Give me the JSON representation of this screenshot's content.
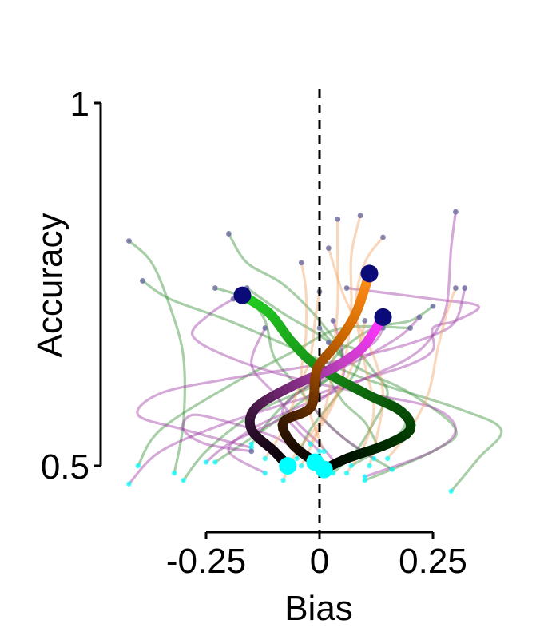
{
  "chart_data": {
    "type": "line",
    "xlabel": "Bias",
    "ylabel": "Accuracy",
    "xlim": [
      -0.25,
      0.25
    ],
    "ylim": [
      0.5,
      1
    ],
    "x_ticks": [
      {
        "value": -0.25,
        "label": "-0.25"
      },
      {
        "value": 0,
        "label": "0"
      },
      {
        "value": 0.25,
        "label": "0.25"
      }
    ],
    "y_ticks": [
      {
        "value": 1,
        "label": "1"
      },
      {
        "value": 0.5,
        "label": "0.5"
      }
    ],
    "reference_line": {
      "x": 0,
      "style": "dashed"
    },
    "grid": false,
    "legend": "none",
    "start_marker_color": "#00ffff",
    "end_marker_color": "#0a0a78",
    "series": [
      {
        "kind": "mean",
        "colors": [
          "#000000",
          "#003300",
          "#0d660d",
          "#1a9e1a",
          "#22cc22"
        ],
        "stroke_width": 12,
        "points": [
          [
            0.01,
            0.495
          ],
          [
            0.06,
            0.51
          ],
          [
            0.15,
            0.53
          ],
          [
            0.2,
            0.55
          ],
          [
            0.18,
            0.575
          ],
          [
            0.1,
            0.6
          ],
          [
            0.0,
            0.635
          ],
          [
            -0.06,
            0.67
          ],
          [
            -0.11,
            0.71
          ],
          [
            -0.17,
            0.735
          ]
        ]
      },
      {
        "kind": "mean",
        "colors": [
          "#000000",
          "#301030",
          "#7a2a7a",
          "#c040c0",
          "#ff33ff"
        ],
        "stroke_width": 12,
        "points": [
          [
            -0.07,
            0.5
          ],
          [
            -0.1,
            0.52
          ],
          [
            -0.15,
            0.55
          ],
          [
            -0.14,
            0.58
          ],
          [
            -0.06,
            0.61
          ],
          [
            0.03,
            0.635
          ],
          [
            0.09,
            0.66
          ],
          [
            0.12,
            0.685
          ],
          [
            0.14,
            0.705
          ]
        ]
      },
      {
        "kind": "mean",
        "colors": [
          "#000000",
          "#3a1a00",
          "#8a4000",
          "#d06a00",
          "#ff8c1a"
        ],
        "stroke_width": 12,
        "points": [
          [
            -0.01,
            0.505
          ],
          [
            -0.06,
            0.53
          ],
          [
            -0.08,
            0.56
          ],
          [
            -0.02,
            0.58
          ],
          [
            -0.01,
            0.62
          ],
          [
            0.0,
            0.64
          ],
          [
            0.04,
            0.67
          ],
          [
            0.08,
            0.71
          ],
          [
            0.11,
            0.765
          ]
        ]
      },
      {
        "kind": "trial",
        "color": "#2e8b2e",
        "points": [
          [
            -0.4,
            0.5
          ],
          [
            -0.35,
            0.55
          ],
          [
            -0.2,
            0.61
          ],
          [
            -0.05,
            0.66
          ],
          [
            0.05,
            0.69
          ],
          [
            0.2,
            0.69
          ]
        ]
      },
      {
        "kind": "trial",
        "color": "#2e8b2e",
        "points": [
          [
            -0.32,
            0.49
          ],
          [
            -0.3,
            0.56
          ],
          [
            -0.3,
            0.65
          ],
          [
            -0.33,
            0.72
          ],
          [
            -0.37,
            0.78
          ],
          [
            -0.42,
            0.81
          ]
        ]
      },
      {
        "kind": "trial",
        "color": "#2e8b2e",
        "points": [
          [
            -0.23,
            0.505
          ],
          [
            -0.1,
            0.56
          ],
          [
            0.0,
            0.61
          ],
          [
            0.05,
            0.65
          ],
          [
            0.0,
            0.7
          ],
          [
            -0.08,
            0.75
          ],
          [
            -0.16,
            0.78
          ],
          [
            -0.2,
            0.82
          ]
        ]
      },
      {
        "kind": "trial",
        "color": "#2e8b2e",
        "points": [
          [
            0.16,
            0.495
          ],
          [
            0.07,
            0.53
          ],
          [
            0.0,
            0.57
          ],
          [
            -0.05,
            0.61
          ],
          [
            -0.1,
            0.65
          ],
          [
            -0.12,
            0.7
          ],
          [
            -0.16,
            0.73
          ],
          [
            -0.23,
            0.745
          ]
        ]
      },
      {
        "kind": "trial",
        "color": "#2e8b2e",
        "points": [
          [
            0.29,
            0.465
          ],
          [
            0.35,
            0.51
          ],
          [
            0.4,
            0.55
          ],
          [
            0.3,
            0.58
          ],
          [
            0.1,
            0.62
          ],
          [
            -0.05,
            0.66
          ],
          [
            -0.2,
            0.7
          ],
          [
            -0.33,
            0.73
          ],
          [
            -0.39,
            0.755
          ]
        ]
      },
      {
        "kind": "trial",
        "color": "#2e8b2e",
        "points": [
          [
            -0.3,
            0.48
          ],
          [
            -0.25,
            0.52
          ],
          [
            -0.15,
            0.57
          ],
          [
            -0.05,
            0.6
          ],
          [
            0.02,
            0.62
          ],
          [
            0.05,
            0.65
          ],
          [
            0.0,
            0.68
          ],
          [
            -0.08,
            0.71
          ],
          [
            -0.16,
            0.745
          ]
        ]
      },
      {
        "kind": "trial",
        "color": "#2e8b2e",
        "points": [
          [
            0.03,
            0.49
          ],
          [
            0.08,
            0.52
          ],
          [
            0.12,
            0.56
          ],
          [
            0.15,
            0.6
          ],
          [
            0.12,
            0.63
          ],
          [
            0.08,
            0.66
          ],
          [
            0.03,
            0.67
          ],
          [
            0.0,
            0.69
          ]
        ]
      },
      {
        "kind": "trial",
        "color": "#2e8b2e",
        "points": [
          [
            0.1,
            0.48
          ],
          [
            0.25,
            0.52
          ],
          [
            0.3,
            0.55
          ],
          [
            0.2,
            0.6
          ],
          [
            0.1,
            0.63
          ],
          [
            0.05,
            0.65
          ],
          [
            0.02,
            0.67
          ]
        ]
      },
      {
        "kind": "trial",
        "color": "#2e8b2e",
        "points": [
          [
            -0.05,
            0.51
          ],
          [
            -0.02,
            0.55
          ],
          [
            0.03,
            0.59
          ],
          [
            0.08,
            0.63
          ],
          [
            0.1,
            0.67
          ],
          [
            0.12,
            0.69
          ]
        ]
      },
      {
        "kind": "trial",
        "color": "#2e8b2e",
        "points": [
          [
            0.07,
            0.5
          ],
          [
            0.15,
            0.53
          ],
          [
            0.19,
            0.56
          ],
          [
            0.16,
            0.59
          ],
          [
            0.1,
            0.6
          ]
        ]
      },
      {
        "kind": "trial",
        "color": "#2e8b2e",
        "points": [
          [
            -0.15,
            0.53
          ],
          [
            -0.1,
            0.57
          ],
          [
            -0.05,
            0.6
          ],
          [
            0.0,
            0.62
          ],
          [
            0.05,
            0.64
          ]
        ]
      },
      {
        "kind": "trial",
        "color": "#2e8b2e",
        "points": [
          [
            0.13,
            0.525
          ],
          [
            0.1,
            0.56
          ],
          [
            0.05,
            0.59
          ],
          [
            0.02,
            0.63
          ],
          [
            0.05,
            0.66
          ],
          [
            0.12,
            0.69
          ],
          [
            0.2,
            0.7
          ],
          [
            0.25,
            0.72
          ]
        ]
      },
      {
        "kind": "trial",
        "color": "#9932a0",
        "points": [
          [
            -0.15,
            0.525
          ],
          [
            -0.3,
            0.55
          ],
          [
            -0.4,
            0.57
          ],
          [
            -0.35,
            0.6
          ],
          [
            -0.2,
            0.62
          ],
          [
            0.0,
            0.64
          ],
          [
            0.15,
            0.66
          ],
          [
            0.25,
            0.68
          ],
          [
            0.3,
            0.7
          ],
          [
            0.32,
            0.745
          ]
        ]
      },
      {
        "kind": "trial",
        "color": "#9932a0",
        "points": [
          [
            0.1,
            0.485
          ],
          [
            0.25,
            0.52
          ],
          [
            0.3,
            0.55
          ],
          [
            0.25,
            0.58
          ],
          [
            0.1,
            0.6
          ],
          [
            -0.05,
            0.62
          ],
          [
            -0.2,
            0.65
          ],
          [
            -0.28,
            0.68
          ],
          [
            -0.24,
            0.71
          ],
          [
            -0.19,
            0.73
          ]
        ]
      },
      {
        "kind": "trial",
        "color": "#9932a0",
        "points": [
          [
            -0.12,
            0.49
          ],
          [
            -0.2,
            0.52
          ],
          [
            -0.15,
            0.55
          ],
          [
            -0.05,
            0.58
          ],
          [
            0.1,
            0.62
          ],
          [
            0.2,
            0.65
          ],
          [
            0.25,
            0.68
          ],
          [
            0.28,
            0.72
          ],
          [
            0.29,
            0.8
          ],
          [
            0.3,
            0.85
          ]
        ]
      },
      {
        "kind": "trial",
        "color": "#9932a0",
        "points": [
          [
            -0.42,
            0.475
          ],
          [
            -0.35,
            0.52
          ],
          [
            -0.2,
            0.56
          ],
          [
            0.0,
            0.6
          ],
          [
            0.1,
            0.62
          ],
          [
            0.2,
            0.64
          ],
          [
            0.25,
            0.66
          ],
          [
            0.25,
            0.69
          ],
          [
            0.3,
            0.7
          ],
          [
            0.35,
            0.72
          ],
          [
            0.25,
            0.73
          ],
          [
            0.06,
            0.745
          ]
        ]
      },
      {
        "kind": "trial",
        "color": "#9932a0",
        "points": [
          [
            0.0,
            0.52
          ],
          [
            -0.05,
            0.55
          ],
          [
            -0.08,
            0.58
          ],
          [
            0.0,
            0.62
          ],
          [
            0.1,
            0.65
          ],
          [
            0.18,
            0.68
          ],
          [
            0.22,
            0.705
          ]
        ]
      },
      {
        "kind": "trial",
        "color": "#9932a0",
        "points": [
          [
            -0.25,
            0.505
          ],
          [
            -0.2,
            0.53
          ],
          [
            -0.1,
            0.56
          ],
          [
            0.0,
            0.59
          ],
          [
            0.05,
            0.62
          ],
          [
            0.05,
            0.66
          ],
          [
            0.03,
            0.7
          ]
        ]
      },
      {
        "kind": "trial",
        "color": "#9932a0",
        "points": [
          [
            0.04,
            0.5
          ],
          [
            0.0,
            0.53
          ],
          [
            -0.05,
            0.56
          ],
          [
            -0.1,
            0.6
          ],
          [
            -0.15,
            0.64
          ],
          [
            -0.12,
            0.69
          ]
        ]
      },
      {
        "kind": "trial",
        "color": "#9932a0",
        "points": [
          [
            -0.05,
            0.52
          ],
          [
            -0.1,
            0.54
          ],
          [
            -0.2,
            0.56
          ],
          [
            -0.28,
            0.57
          ],
          [
            -0.3,
            0.55
          ],
          [
            -0.25,
            0.53
          ],
          [
            -0.15,
            0.52
          ]
        ]
      },
      {
        "kind": "trial",
        "color": "#9932a0",
        "points": [
          [
            0.12,
            0.51
          ],
          [
            0.05,
            0.54
          ],
          [
            0.0,
            0.57
          ],
          [
            -0.02,
            0.6
          ],
          [
            0.05,
            0.64
          ],
          [
            0.12,
            0.67
          ],
          [
            0.14,
            0.69
          ]
        ]
      },
      {
        "kind": "trial",
        "color": "#f0a060",
        "points": [
          [
            -0.08,
            0.48
          ],
          [
            -0.05,
            0.52
          ],
          [
            0.0,
            0.56
          ],
          [
            0.02,
            0.6
          ],
          [
            0.03,
            0.65
          ],
          [
            0.04,
            0.72
          ],
          [
            0.04,
            0.79
          ],
          [
            0.04,
            0.84
          ]
        ]
      },
      {
        "kind": "trial",
        "color": "#f0a060",
        "points": [
          [
            0.06,
            0.49
          ],
          [
            0.1,
            0.53
          ],
          [
            0.12,
            0.58
          ],
          [
            0.1,
            0.64
          ],
          [
            0.08,
            0.72
          ],
          [
            0.1,
            0.78
          ],
          [
            0.14,
            0.815
          ]
        ]
      },
      {
        "kind": "trial",
        "color": "#f0a060",
        "points": [
          [
            -0.04,
            0.5
          ],
          [
            0.0,
            0.55
          ],
          [
            0.04,
            0.6
          ],
          [
            0.06,
            0.66
          ],
          [
            0.07,
            0.72
          ],
          [
            0.07,
            0.79
          ],
          [
            0.09,
            0.845
          ]
        ]
      },
      {
        "kind": "trial",
        "color": "#f0a060",
        "points": [
          [
            0.01,
            0.52
          ],
          [
            -0.02,
            0.57
          ],
          [
            -0.04,
            0.62
          ],
          [
            -0.03,
            0.68
          ],
          [
            -0.03,
            0.74
          ],
          [
            -0.04,
            0.78
          ]
        ]
      },
      {
        "kind": "trial",
        "color": "#f0a060",
        "points": [
          [
            0.11,
            0.5
          ],
          [
            0.13,
            0.55
          ],
          [
            0.14,
            0.6
          ],
          [
            0.12,
            0.65
          ],
          [
            0.08,
            0.7
          ],
          [
            0.05,
            0.74
          ],
          [
            0.02,
            0.8
          ]
        ]
      },
      {
        "kind": "trial",
        "color": "#f0a060",
        "points": [
          [
            -0.12,
            0.51
          ],
          [
            -0.08,
            0.55
          ],
          [
            -0.05,
            0.6
          ],
          [
            -0.02,
            0.65
          ],
          [
            -0.01,
            0.7
          ],
          [
            0.0,
            0.74
          ]
        ]
      },
      {
        "kind": "trial",
        "color": "#f0a060",
        "points": [
          [
            0.15,
            0.51
          ],
          [
            0.2,
            0.55
          ],
          [
            0.24,
            0.6
          ],
          [
            0.26,
            0.66
          ],
          [
            0.28,
            0.71
          ],
          [
            0.3,
            0.745
          ]
        ]
      },
      {
        "kind": "trial",
        "color": "#f0a060",
        "points": [
          [
            -0.02,
            0.53
          ],
          [
            0.02,
            0.58
          ],
          [
            0.06,
            0.62
          ],
          [
            0.09,
            0.67
          ],
          [
            0.1,
            0.7
          ]
        ]
      }
    ]
  }
}
